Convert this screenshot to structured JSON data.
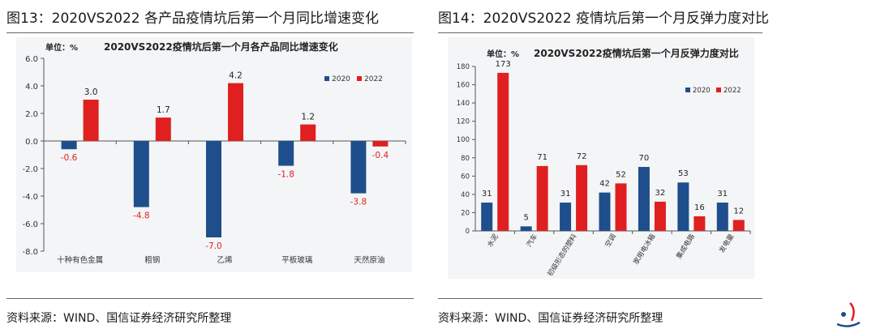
{
  "figures": [
    {
      "id": "fig13",
      "title": "图13：2020VS2022 各产品疫情坑后第一个月同比增速变化",
      "source": "资料来源：WIND、国信证券经济研究所整理"
    },
    {
      "id": "fig14",
      "title": "图14：2020VS2022 疫情坑后第一个月反弹力度对比",
      "source": "资料来源：WIND、国信证券经济研究所整理"
    }
  ],
  "colors": {
    "series_2020": "#1f4e8c",
    "series_2022": "#e02020",
    "neg_label": "#e02020",
    "text": "#222222"
  },
  "chart_data": [
    {
      "type": "bar",
      "unit_label": "单位：%",
      "title": "2020VS2022疫情坑后第一个月各产品同比增速变化",
      "categories": [
        "十种有色金属",
        "粗钢",
        "乙烯",
        "平板玻璃",
        "天然原油"
      ],
      "series": [
        {
          "name": "2020",
          "values": [
            -0.6,
            -4.8,
            -7.0,
            -1.8,
            -3.8
          ]
        },
        {
          "name": "2022",
          "values": [
            3.0,
            1.7,
            4.2,
            1.2,
            -0.4
          ]
        }
      ],
      "data_labels": [
        "-0.6",
        "3.0",
        "-4.8",
        "1.7",
        "-7.0",
        "4.2",
        "-1.8",
        "1.2",
        "-3.8",
        "-0.4"
      ],
      "yticks": [
        "6.0",
        "4.0",
        "2.0",
        "0.0",
        "-2.0",
        "-4.0",
        "-6.0",
        "-8.0"
      ],
      "ylim": [
        -8,
        6
      ],
      "legend_position": "top-right",
      "grid": false
    },
    {
      "type": "bar",
      "unit_label": "单位：%",
      "title": "2020VS2022疫情坑后第一个月反弹力度对比",
      "categories": [
        "水泥",
        "汽车",
        "初级形态的塑料",
        "空调",
        "家用电冰箱",
        "集成电路",
        "发电量"
      ],
      "series": [
        {
          "name": "2020",
          "values": [
            31,
            5,
            31,
            42,
            70,
            53,
            31
          ]
        },
        {
          "name": "2022",
          "values": [
            173,
            71,
            72,
            52,
            32,
            16,
            12
          ]
        }
      ],
      "data_labels": [
        "31",
        "173",
        "5",
        "71",
        "31",
        "72",
        "42",
        "52",
        "70",
        "32",
        "53",
        "16",
        "31",
        "12"
      ],
      "yticks": [
        "0",
        "20",
        "40",
        "60",
        "80",
        "100",
        "120",
        "140",
        "160",
        "180"
      ],
      "ylim": [
        0,
        180
      ],
      "legend_position": "top-right",
      "grid": false
    }
  ]
}
